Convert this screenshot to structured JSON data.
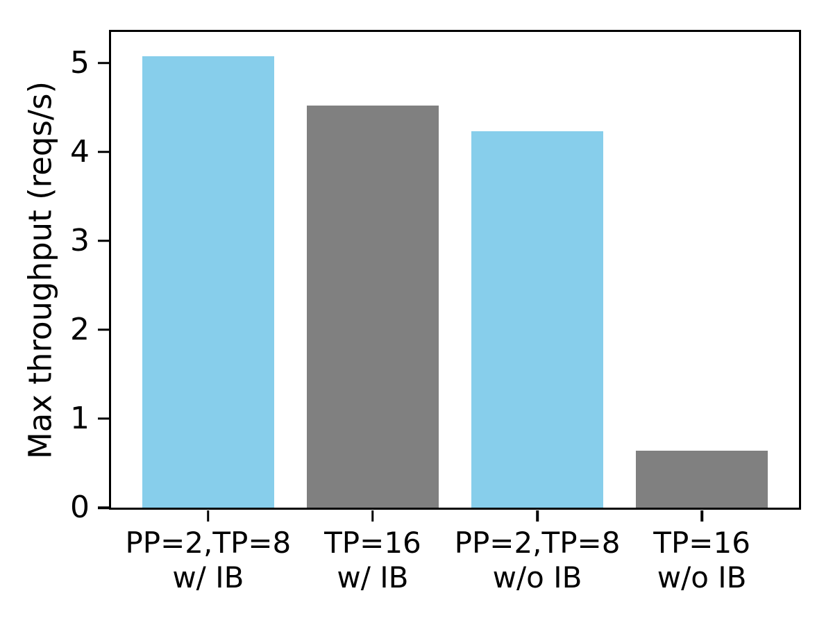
{
  "chart_data": {
    "type": "bar",
    "title": "",
    "xlabel": "",
    "ylabel": "Max throughput (reqs/s)",
    "categories": [
      "PP=2,TP=8\nw/ IB",
      "TP=16\nw/ IB",
      "PP=2,TP=8\nw/o IB",
      "TP=16\nw/o IB"
    ],
    "values": [
      5.08,
      4.52,
      4.23,
      0.64
    ],
    "bar_colors": [
      "#87CEEB",
      "#808080",
      "#87CEEB",
      "#808080"
    ],
    "yticks": [
      0,
      1,
      2,
      3,
      4,
      5
    ],
    "ylim": [
      0,
      5.35
    ],
    "xlim": [
      -0.59,
      3.59
    ],
    "bar_width": 0.8,
    "grid": false,
    "legend_position": "none",
    "axis_color": "#000000",
    "text_color": "#000000",
    "background_color": "#ffffff"
  }
}
